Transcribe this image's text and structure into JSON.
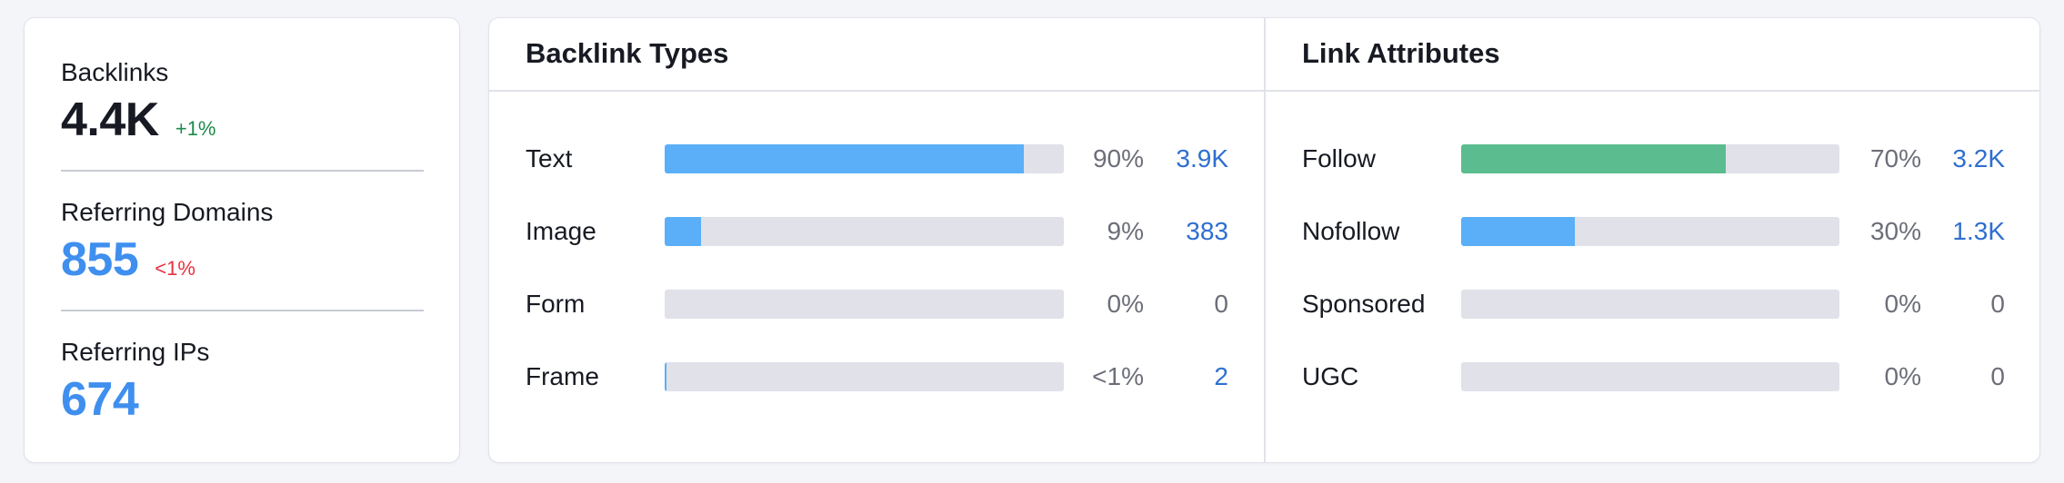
{
  "summary": {
    "backlinks": {
      "label": "Backlinks",
      "value": "4.4K",
      "delta": "+1%",
      "value_color": "#171a22",
      "delta_color": "#1f8a4c"
    },
    "referring_domains": {
      "label": "Referring Domains",
      "value": "855",
      "delta": "<1%",
      "value_color": "#3f8fef",
      "delta_color": "#e8313f"
    },
    "referring_ips": {
      "label": "Referring IPs",
      "value": "674",
      "value_color": "#3f8fef"
    }
  },
  "backlink_types": {
    "title": "Backlink Types",
    "rows": [
      {
        "label": "Text",
        "fraction": 0.9,
        "pct": "90%",
        "count": "3.9K",
        "count_link": true
      },
      {
        "label": "Image",
        "fraction": 0.09,
        "pct": "9%",
        "count": "383",
        "count_link": true
      },
      {
        "label": "Form",
        "fraction": 0.0,
        "pct": "0%",
        "count": "0",
        "count_link": false
      },
      {
        "label": "Frame",
        "fraction": 0.004,
        "pct": "<1%",
        "count": "2",
        "count_link": true
      }
    ],
    "bar_color": "#5aaff8"
  },
  "link_attributes": {
    "title": "Link Attributes",
    "rows": [
      {
        "label": "Follow",
        "fraction": 0.7,
        "pct": "70%",
        "count": "3.2K",
        "count_link": true,
        "color": "#5bbd8f"
      },
      {
        "label": "Nofollow",
        "fraction": 0.3,
        "pct": "30%",
        "count": "1.3K",
        "count_link": true,
        "color": "#5aaff8"
      },
      {
        "label": "Sponsored",
        "fraction": 0.0,
        "pct": "0%",
        "count": "0",
        "count_link": false,
        "color": "#5aaff8"
      },
      {
        "label": "UGC",
        "fraction": 0.0,
        "pct": "0%",
        "count": "0",
        "count_link": false,
        "color": "#5aaff8"
      }
    ]
  },
  "colors": {
    "link": "#2e6fd0",
    "static_count": "#6c6e79",
    "track": "#e0e1e9"
  }
}
